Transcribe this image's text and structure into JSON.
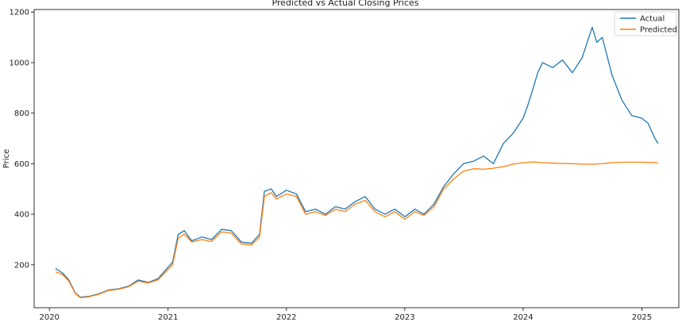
{
  "chart_data": {
    "type": "line",
    "title": "Predicted vs Actual Closing Prices",
    "xlabel": "",
    "ylabel": "Price",
    "xlim": [
      "2019-11-15",
      "2025-04-25"
    ],
    "ylim": [
      30,
      1210
    ],
    "grid": false,
    "legend_position": "top-right",
    "x_ticks": [
      "2020",
      "2021",
      "2022",
      "2023",
      "2024",
      "2025"
    ],
    "y_ticks": [
      200,
      400,
      600,
      800,
      1000,
      1200
    ],
    "series": [
      {
        "name": "Actual",
        "color": "#1f77b4",
        "points": [
          [
            "2020-01-20",
            185
          ],
          [
            "2020-02-10",
            168
          ],
          [
            "2020-03-01",
            140
          ],
          [
            "2020-03-20",
            90
          ],
          [
            "2020-04-05",
            72
          ],
          [
            "2020-05-01",
            75
          ],
          [
            "2020-06-01",
            85
          ],
          [
            "2020-07-01",
            100
          ],
          [
            "2020-08-01",
            105
          ],
          [
            "2020-09-01",
            115
          ],
          [
            "2020-10-01",
            140
          ],
          [
            "2020-11-01",
            130
          ],
          [
            "2020-12-01",
            145
          ],
          [
            "2020-12-25",
            180
          ],
          [
            "2021-01-15",
            210
          ],
          [
            "2021-02-01",
            320
          ],
          [
            "2021-02-20",
            335
          ],
          [
            "2021-03-15",
            295
          ],
          [
            "2021-04-15",
            310
          ],
          [
            "2021-05-15",
            300
          ],
          [
            "2021-06-15",
            340
          ],
          [
            "2021-07-15",
            335
          ],
          [
            "2021-08-15",
            290
          ],
          [
            "2021-09-15",
            285
          ],
          [
            "2021-10-10",
            320
          ],
          [
            "2021-10-25",
            490
          ],
          [
            "2021-11-15",
            500
          ],
          [
            "2021-12-01",
            470
          ],
          [
            "2022-01-01",
            495
          ],
          [
            "2022-02-01",
            480
          ],
          [
            "2022-03-01",
            410
          ],
          [
            "2022-04-01",
            420
          ],
          [
            "2022-05-01",
            400
          ],
          [
            "2022-06-01",
            430
          ],
          [
            "2022-07-01",
            420
          ],
          [
            "2022-08-01",
            450
          ],
          [
            "2022-09-01",
            470
          ],
          [
            "2022-10-01",
            420
          ],
          [
            "2022-11-01",
            400
          ],
          [
            "2022-12-01",
            420
          ],
          [
            "2023-01-01",
            390
          ],
          [
            "2023-02-01",
            420
          ],
          [
            "2023-03-01",
            400
          ],
          [
            "2023-04-01",
            440
          ],
          [
            "2023-05-01",
            510
          ],
          [
            "2023-06-01",
            560
          ],
          [
            "2023-07-01",
            600
          ],
          [
            "2023-08-01",
            610
          ],
          [
            "2023-09-01",
            630
          ],
          [
            "2023-10-01",
            600
          ],
          [
            "2023-11-01",
            680
          ],
          [
            "2023-12-01",
            720
          ],
          [
            "2024-01-01",
            780
          ],
          [
            "2024-01-15",
            830
          ],
          [
            "2024-02-01",
            900
          ],
          [
            "2024-02-15",
            960
          ],
          [
            "2024-03-01",
            1000
          ],
          [
            "2024-04-01",
            980
          ],
          [
            "2024-05-01",
            1010
          ],
          [
            "2024-06-01",
            960
          ],
          [
            "2024-07-01",
            1020
          ],
          [
            "2024-08-01",
            1140
          ],
          [
            "2024-08-15",
            1080
          ],
          [
            "2024-09-01",
            1100
          ],
          [
            "2024-10-01",
            950
          ],
          [
            "2024-11-01",
            850
          ],
          [
            "2024-12-01",
            790
          ],
          [
            "2025-01-01",
            780
          ],
          [
            "2025-01-20",
            760
          ],
          [
            "2025-02-10",
            700
          ],
          [
            "2025-02-20",
            680
          ]
        ]
      },
      {
        "name": "Predicted",
        "color": "#ff7f0e",
        "points": [
          [
            "2020-01-20",
            172
          ],
          [
            "2020-02-10",
            162
          ],
          [
            "2020-03-01",
            135
          ],
          [
            "2020-03-20",
            88
          ],
          [
            "2020-04-05",
            70
          ],
          [
            "2020-05-01",
            73
          ],
          [
            "2020-06-01",
            83
          ],
          [
            "2020-07-01",
            98
          ],
          [
            "2020-08-01",
            103
          ],
          [
            "2020-09-01",
            113
          ],
          [
            "2020-10-01",
            135
          ],
          [
            "2020-11-01",
            128
          ],
          [
            "2020-12-01",
            140
          ],
          [
            "2020-12-25",
            172
          ],
          [
            "2021-01-15",
            200
          ],
          [
            "2021-02-01",
            305
          ],
          [
            "2021-02-20",
            322
          ],
          [
            "2021-03-15",
            290
          ],
          [
            "2021-04-15",
            300
          ],
          [
            "2021-05-15",
            292
          ],
          [
            "2021-06-15",
            330
          ],
          [
            "2021-07-15",
            325
          ],
          [
            "2021-08-15",
            282
          ],
          [
            "2021-09-15",
            278
          ],
          [
            "2021-10-10",
            310
          ],
          [
            "2021-10-25",
            470
          ],
          [
            "2021-11-15",
            485
          ],
          [
            "2021-12-01",
            460
          ],
          [
            "2022-01-01",
            480
          ],
          [
            "2022-02-01",
            470
          ],
          [
            "2022-03-01",
            400
          ],
          [
            "2022-04-01",
            410
          ],
          [
            "2022-05-01",
            395
          ],
          [
            "2022-06-01",
            420
          ],
          [
            "2022-07-01",
            410
          ],
          [
            "2022-08-01",
            440
          ],
          [
            "2022-09-01",
            455
          ],
          [
            "2022-10-01",
            410
          ],
          [
            "2022-11-01",
            390
          ],
          [
            "2022-12-01",
            410
          ],
          [
            "2023-01-01",
            380
          ],
          [
            "2023-02-01",
            410
          ],
          [
            "2023-03-01",
            395
          ],
          [
            "2023-04-01",
            430
          ],
          [
            "2023-05-01",
            500
          ],
          [
            "2023-06-01",
            540
          ],
          [
            "2023-07-01",
            570
          ],
          [
            "2023-08-01",
            580
          ],
          [
            "2023-09-01",
            578
          ],
          [
            "2023-10-01",
            582
          ],
          [
            "2023-11-01",
            588
          ],
          [
            "2023-12-01",
            598
          ],
          [
            "2024-01-01",
            604
          ],
          [
            "2024-02-01",
            607
          ],
          [
            "2024-03-01",
            604
          ],
          [
            "2024-04-01",
            602
          ],
          [
            "2024-05-01",
            601
          ],
          [
            "2024-06-01",
            600
          ],
          [
            "2024-07-01",
            598
          ],
          [
            "2024-08-01",
            598
          ],
          [
            "2024-09-01",
            600
          ],
          [
            "2024-10-01",
            604
          ],
          [
            "2024-11-01",
            606
          ],
          [
            "2024-12-01",
            606
          ],
          [
            "2025-01-01",
            606
          ],
          [
            "2025-02-01",
            605
          ],
          [
            "2025-02-20",
            603
          ]
        ]
      }
    ]
  }
}
